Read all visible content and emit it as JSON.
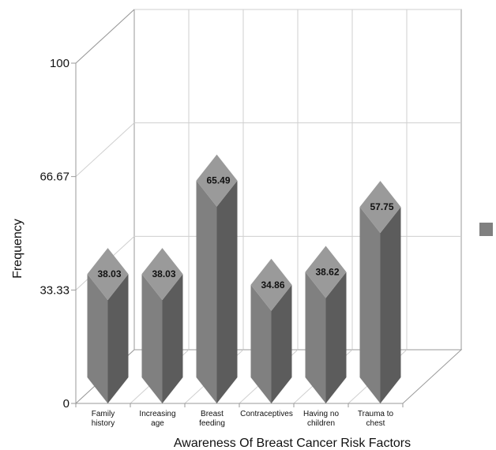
{
  "chart_data": {
    "type": "bar",
    "title": "",
    "xlabel": "Awareness Of Breast Cancer Risk Factors",
    "ylabel": "Frequency",
    "categories": [
      [
        "Family",
        "history"
      ],
      [
        "Increasing",
        "age"
      ],
      [
        "Breast",
        "feeding"
      ],
      [
        "Contraceptives"
      ],
      [
        "Having no",
        "children"
      ],
      [
        "Trauma to",
        "chest"
      ]
    ],
    "values": [
      38.03,
      38.03,
      65.49,
      34.86,
      38.62,
      57.75
    ],
    "value_labels": [
      "38.03",
      "38.03",
      "65.49",
      "34.86",
      "38.62",
      "57.75"
    ],
    "ylim": [
      0,
      100
    ],
    "yticks": [
      0,
      33.33,
      66.67,
      100
    ],
    "ytick_labels": [
      "0",
      "33.33",
      "66.67",
      "100"
    ],
    "grid": true,
    "legend": "right",
    "colors": {
      "bar_front": "#808080",
      "bar_side": "#5c5c5c",
      "bar_top": "#9a9a9a",
      "legend_swatch": "#808080"
    }
  }
}
